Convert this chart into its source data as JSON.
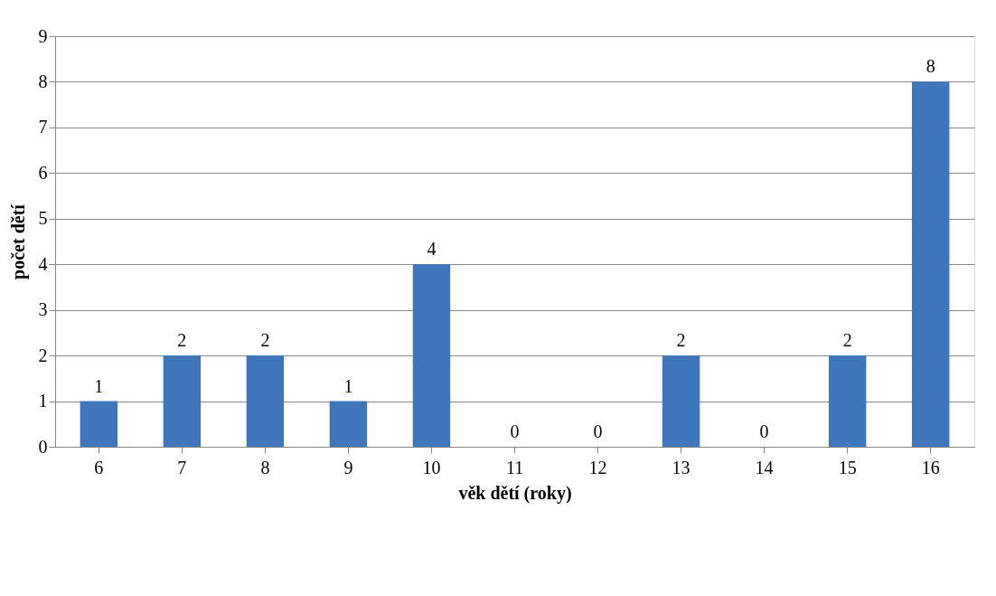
{
  "chart_data": {
    "type": "bar",
    "xlabel": "věk dětí (roky)",
    "ylabel": "počet dětí",
    "categories": [
      "6",
      "7",
      "8",
      "9",
      "10",
      "11",
      "12",
      "13",
      "14",
      "15",
      "16"
    ],
    "values": [
      1,
      2,
      2,
      1,
      4,
      0,
      0,
      2,
      0,
      2,
      8
    ],
    "color": "#3f75bb",
    "ylim": [
      0,
      9
    ],
    "yticks": [
      0,
      1,
      2,
      3,
      4,
      5,
      6,
      7,
      8,
      9
    ],
    "grid": "y",
    "data_labels": true
  }
}
